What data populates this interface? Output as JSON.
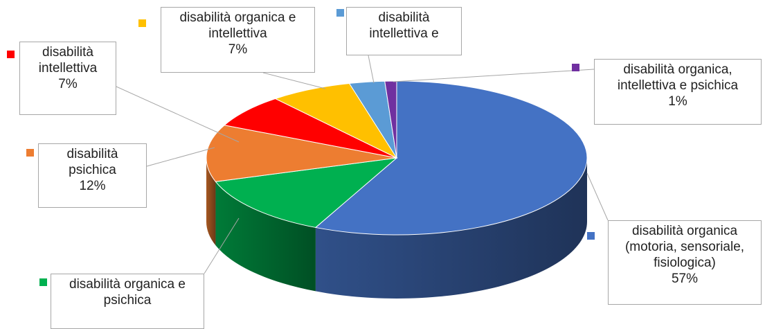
{
  "chart_data": {
    "type": "pie3d",
    "categories": [
      "disabilità organica (motoria, sensoriale, fisiologica)",
      "disabilità organica e psichica",
      "disabilità psichica",
      "disabilità intellettiva",
      "disabilità organica e intellettiva",
      "disabilità intellettiva e",
      "disabilità organica, intellettiva e psichica"
    ],
    "values": [
      57,
      13,
      12,
      7,
      7,
      3,
      1
    ],
    "value_labels": [
      "57%",
      null,
      "12%",
      "7%",
      "7%",
      null,
      "1%"
    ],
    "colors": [
      "#4472c4",
      "#00b050",
      "#ed7d31",
      "#ff0000",
      "#ffc000",
      "#5b9bd5",
      "#7030a0"
    ]
  }
}
